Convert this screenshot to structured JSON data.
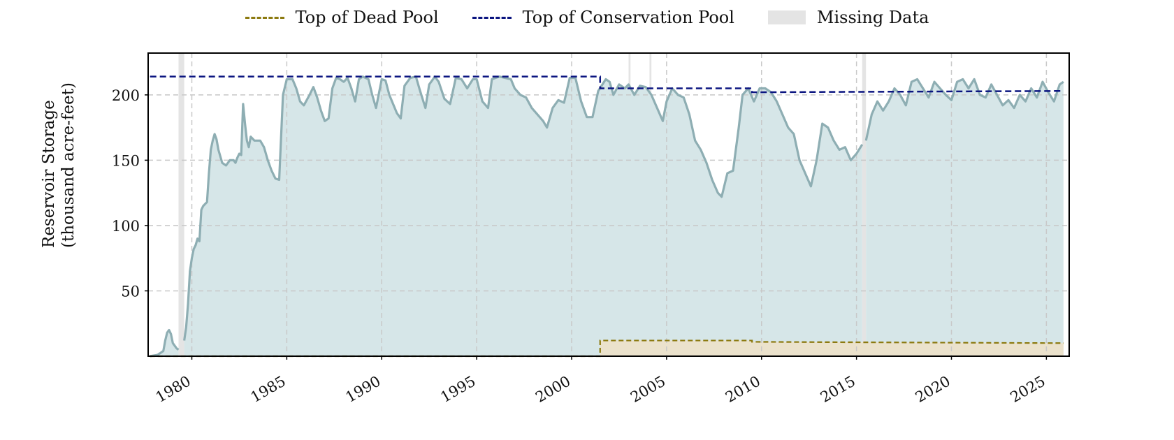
{
  "legend": {
    "dead_pool": "Top of Dead Pool",
    "conservation_pool": "Top of Conservation Pool",
    "missing": "Missing Data"
  },
  "colors": {
    "storage_line": "#8eaeb3",
    "storage_fill": "#d6e6e8",
    "dead_pool_line": "#8c7a10",
    "dead_pool_fill": "#ebe2cc",
    "conservation_line": "#0b1580",
    "missing_fill": "#e4e4e4",
    "grid": "#c8c8c8"
  },
  "chart_data": {
    "type": "line",
    "title": "",
    "xlabel": "",
    "ylabel": "Reservoir Storage\n(thousand acre-feet)",
    "ylabel_lines": [
      "Reservoir Storage",
      "(thousand acre-feet)"
    ],
    "xlim": [
      1977.7,
      2026.2
    ],
    "ylim": [
      0,
      232
    ],
    "xticks": [
      1980,
      1985,
      1990,
      1995,
      2000,
      2005,
      2010,
      2015,
      2020,
      2025
    ],
    "xtick_labels": [
      "1980",
      "1985",
      "1990",
      "1995",
      "2000",
      "2005",
      "2010",
      "2015",
      "2020",
      "2025"
    ],
    "yticks": [
      50,
      100,
      150,
      200
    ],
    "ytick_labels": [
      "50",
      "100",
      "150",
      "200"
    ],
    "grid": true,
    "legend_position": "top-center",
    "series": [
      {
        "name": "Reservoir Storage",
        "segments": [
          [
            [
              1977.8,
              0
            ],
            [
              1978.2,
              1
            ],
            [
              1978.5,
              4
            ],
            [
              1978.6,
              12
            ],
            [
              1978.7,
              18
            ],
            [
              1978.8,
              20
            ],
            [
              1978.9,
              17
            ],
            [
              1979.0,
              10
            ],
            [
              1979.2,
              6
            ],
            [
              1979.3,
              5
            ]
          ],
          [
            [
              1979.6,
              12
            ],
            [
              1979.7,
              22
            ],
            [
              1979.8,
              40
            ],
            [
              1979.9,
              65
            ],
            [
              1980.0,
              75
            ],
            [
              1980.1,
              82
            ],
            [
              1980.2,
              85
            ],
            [
              1980.3,
              90
            ],
            [
              1980.4,
              88
            ],
            [
              1980.5,
              112
            ],
            [
              1980.6,
              115
            ],
            [
              1980.8,
              118
            ],
            [
              1980.9,
              140
            ],
            [
              1981.0,
              158
            ],
            [
              1981.1,
              165
            ],
            [
              1981.2,
              170
            ],
            [
              1981.3,
              166
            ],
            [
              1981.4,
              158
            ],
            [
              1981.6,
              148
            ],
            [
              1981.8,
              146
            ],
            [
              1982.0,
              150
            ],
            [
              1982.2,
              150
            ],
            [
              1982.3,
              148
            ],
            [
              1982.4,
              152
            ],
            [
              1982.5,
              155
            ],
            [
              1982.6,
              154
            ],
            [
              1982.7,
              193
            ],
            [
              1982.8,
              178
            ],
            [
              1982.9,
              165
            ],
            [
              1983.0,
              160
            ],
            [
              1983.1,
              168
            ],
            [
              1983.3,
              165
            ],
            [
              1983.6,
              165
            ],
            [
              1983.8,
              160
            ],
            [
              1984.0,
              150
            ],
            [
              1984.2,
              142
            ],
            [
              1984.4,
              136
            ],
            [
              1984.6,
              135
            ],
            [
              1984.8,
              200
            ],
            [
              1985.0,
              212
            ],
            [
              1985.3,
              212
            ],
            [
              1985.5,
              205
            ],
            [
              1985.7,
              195
            ],
            [
              1985.9,
              192
            ],
            [
              1986.2,
              200
            ],
            [
              1986.4,
              206
            ],
            [
              1986.6,
              198
            ],
            [
              1986.8,
              188
            ],
            [
              1987.0,
              180
            ],
            [
              1987.2,
              182
            ],
            [
              1987.4,
              205
            ],
            [
              1987.6,
              213
            ],
            [
              1987.8,
              212
            ],
            [
              1988.0,
              210
            ],
            [
              1988.2,
              213
            ],
            [
              1988.4,
              205
            ],
            [
              1988.6,
              195
            ],
            [
              1988.8,
              212
            ],
            [
              1989.0,
              214
            ],
            [
              1989.3,
              212
            ],
            [
              1989.5,
              200
            ],
            [
              1989.7,
              190
            ],
            [
              1990.0,
              212
            ],
            [
              1990.2,
              211
            ],
            [
              1990.4,
              200
            ],
            [
              1990.6,
              193
            ],
            [
              1990.8,
              186
            ],
            [
              1991.0,
              182
            ],
            [
              1991.2,
              207
            ],
            [
              1991.5,
              213
            ],
            [
              1991.8,
              214
            ],
            [
              1992.0,
              204
            ],
            [
              1992.3,
              190
            ],
            [
              1992.5,
              208
            ],
            [
              1992.8,
              214
            ],
            [
              1993.0,
              210
            ],
            [
              1993.3,
              197
            ],
            [
              1993.6,
              193
            ],
            [
              1993.9,
              213
            ],
            [
              1994.2,
              212
            ],
            [
              1994.5,
              205
            ],
            [
              1994.8,
              212
            ],
            [
              1995.0,
              212
            ],
            [
              1995.3,
              195
            ],
            [
              1995.6,
              190
            ],
            [
              1995.8,
              212
            ],
            [
              1996.2,
              214
            ],
            [
              1996.5,
              213
            ],
            [
              1996.8,
              212
            ],
            [
              1997.0,
              205
            ],
            [
              1997.3,
              200
            ],
            [
              1997.6,
              198
            ],
            [
              1997.9,
              190
            ],
            [
              1998.2,
              185
            ],
            [
              1998.5,
              180
            ],
            [
              1998.7,
              175
            ],
            [
              1999.0,
              190
            ],
            [
              1999.3,
              196
            ],
            [
              1999.6,
              194
            ],
            [
              1999.9,
              213
            ],
            [
              2000.2,
              213
            ],
            [
              2000.5,
              195
            ],
            [
              2000.8,
              183
            ],
            [
              2001.1,
              183
            ],
            [
              2001.4,
              203
            ],
            [
              2001.8,
              212
            ],
            [
              2002.0,
              210
            ],
            [
              2002.2,
              200
            ],
            [
              2002.5,
              208
            ],
            [
              2002.8,
              205
            ],
            [
              2003.0,
              208
            ],
            [
              2003.3,
              200
            ],
            [
              2003.6,
              207
            ],
            [
              2003.9,
              206
            ],
            [
              2004.2,
              200
            ],
            [
              2004.5,
              190
            ],
            [
              2004.8,
              180
            ],
            [
              2005.0,
              195
            ],
            [
              2005.3,
              205
            ],
            [
              2005.6,
              200
            ],
            [
              2005.9,
              198
            ],
            [
              2006.2,
              185
            ],
            [
              2006.5,
              165
            ],
            [
              2006.8,
              158
            ],
            [
              2007.1,
              148
            ],
            [
              2007.4,
              135
            ],
            [
              2007.7,
              125
            ],
            [
              2007.9,
              122
            ],
            [
              2008.2,
              140
            ],
            [
              2008.5,
              142
            ],
            [
              2008.8,
              175
            ],
            [
              2009.0,
              200
            ],
            [
              2009.3,
              205
            ],
            [
              2009.6,
              195
            ],
            [
              2009.9,
              205
            ],
            [
              2010.2,
              205
            ],
            [
              2010.5,
              202
            ],
            [
              2010.8,
              195
            ],
            [
              2011.1,
              185
            ],
            [
              2011.4,
              175
            ],
            [
              2011.7,
              170
            ],
            [
              2012.0,
              150
            ],
            [
              2012.3,
              140
            ],
            [
              2012.6,
              130
            ],
            [
              2012.9,
              150
            ],
            [
              2013.2,
              178
            ],
            [
              2013.5,
              175
            ],
            [
              2013.8,
              165
            ],
            [
              2014.1,
              158
            ],
            [
              2014.4,
              160
            ],
            [
              2014.7,
              150
            ],
            [
              2015.0,
              155
            ],
            [
              2015.3,
              162
            ]
          ],
          [
            [
              2015.5,
              165
            ],
            [
              2015.8,
              185
            ],
            [
              2016.1,
              195
            ],
            [
              2016.4,
              188
            ],
            [
              2016.7,
              195
            ],
            [
              2017.0,
              205
            ],
            [
              2017.3,
              200
            ],
            [
              2017.6,
              192
            ],
            [
              2017.9,
              210
            ],
            [
              2018.2,
              212
            ],
            [
              2018.5,
              205
            ],
            [
              2018.8,
              198
            ],
            [
              2019.1,
              210
            ],
            [
              2019.4,
              205
            ],
            [
              2019.7,
              200
            ],
            [
              2020.0,
              196
            ],
            [
              2020.3,
              210
            ],
            [
              2020.6,
              212
            ],
            [
              2020.9,
              205
            ],
            [
              2021.2,
              212
            ],
            [
              2021.5,
              200
            ],
            [
              2021.8,
              198
            ],
            [
              2022.1,
              208
            ],
            [
              2022.4,
              200
            ],
            [
              2022.7,
              192
            ],
            [
              2023.0,
              196
            ],
            [
              2023.3,
              190
            ],
            [
              2023.6,
              200
            ],
            [
              2023.9,
              195
            ],
            [
              2024.2,
              205
            ],
            [
              2024.5,
              198
            ],
            [
              2024.8,
              210
            ],
            [
              2025.1,
              202
            ],
            [
              2025.4,
              195
            ],
            [
              2025.7,
              208
            ],
            [
              2025.9,
              210
            ]
          ]
        ]
      },
      {
        "name": "Top of Conservation Pool",
        "points": [
          [
            1977.8,
            214
          ],
          [
            2001.5,
            214
          ],
          [
            2001.5,
            205
          ],
          [
            2009.5,
            205
          ],
          [
            2009.5,
            202
          ],
          [
            2025.9,
            203
          ]
        ]
      },
      {
        "name": "Top of Dead Pool",
        "points": [
          [
            1977.8,
            0
          ],
          [
            2001.5,
            0
          ],
          [
            2001.5,
            12
          ],
          [
            2009.5,
            12
          ],
          [
            2009.5,
            11
          ],
          [
            2025.9,
            10
          ]
        ]
      }
    ],
    "missing_data_periods": [
      [
        1979.3,
        1979.6
      ],
      [
        2003.0,
        2003.1
      ],
      [
        2004.1,
        2004.2
      ],
      [
        2015.3,
        2015.5
      ]
    ]
  }
}
